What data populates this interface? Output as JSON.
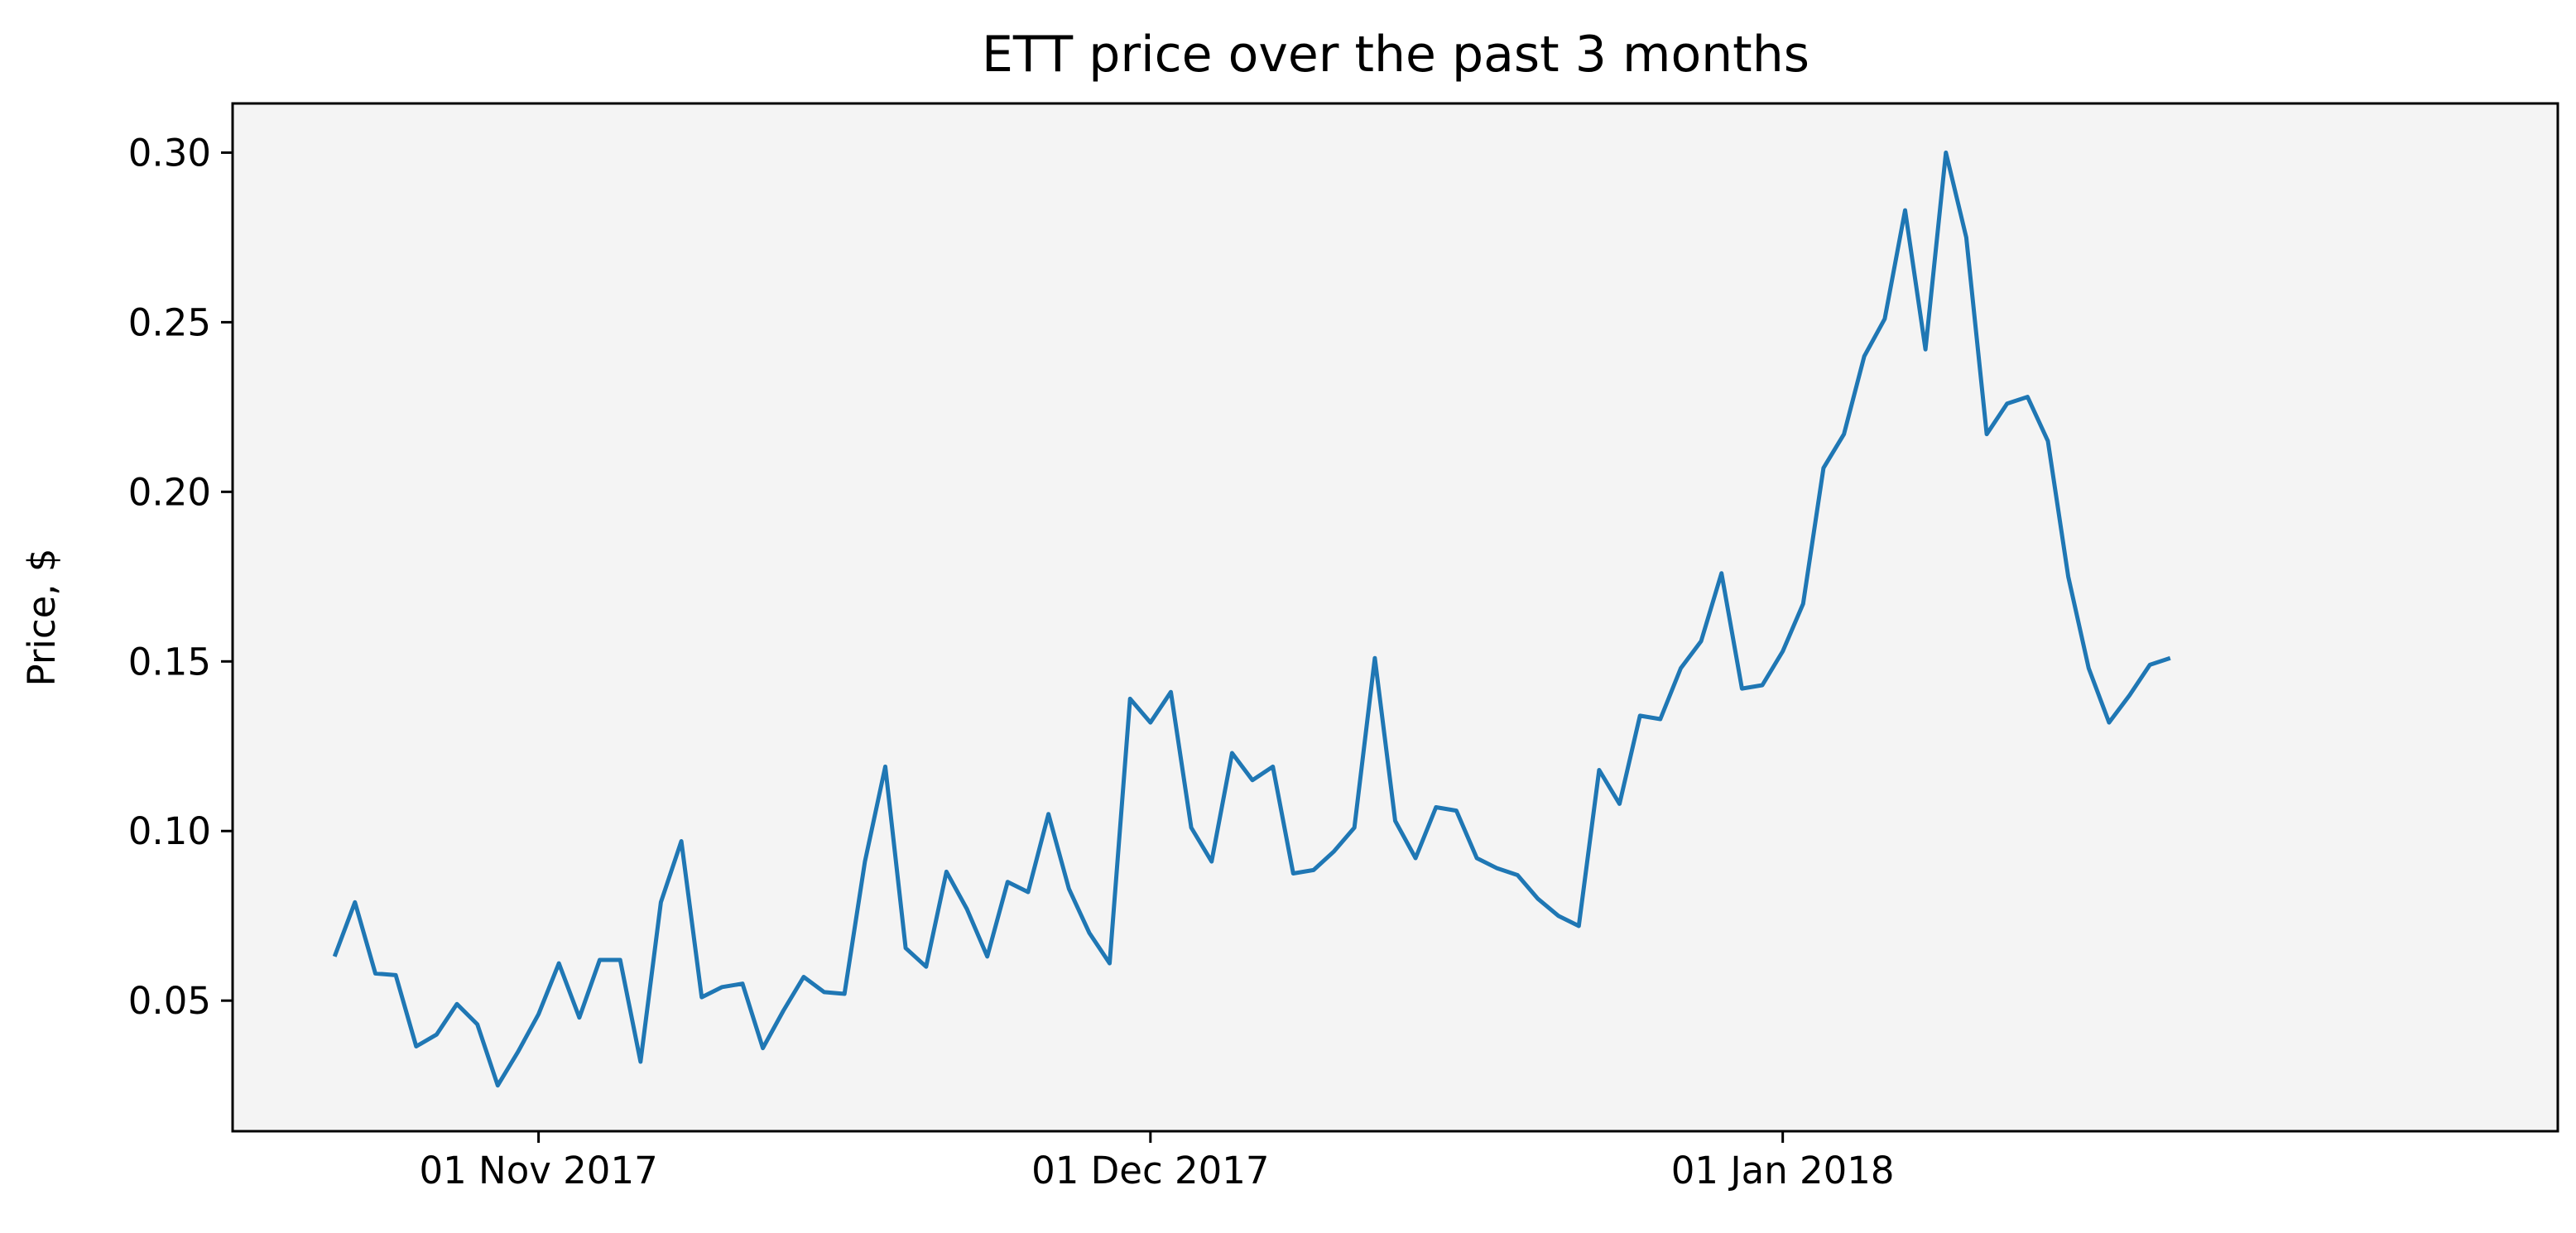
{
  "chart_data": {
    "type": "line",
    "title": "ETT price over the past 3 months",
    "xlabel": "",
    "ylabel": "Price, $",
    "x_start": "2017-10-22",
    "x_step_days": 1,
    "x_ticks": [
      {
        "date": "2017-11-01",
        "label": "01 Nov 2017"
      },
      {
        "date": "2017-12-01",
        "label": "01 Dec 2017"
      },
      {
        "date": "2018-01-01",
        "label": "01 Jan 2018"
      }
    ],
    "xlim": [
      "2017-10-17",
      "2018-02-08"
    ],
    "ylim": [
      0.0115,
      0.3145
    ],
    "y_ticks": [
      0.05,
      0.1,
      0.15,
      0.2,
      0.25,
      0.3
    ],
    "y_tick_labels": [
      "0.05",
      "0.10",
      "0.15",
      "0.20",
      "0.25",
      "0.30"
    ],
    "grid": false,
    "background_color": "#f4f4f4",
    "series": [
      {
        "name": "",
        "color": "#1f77b4",
        "values": [
          0.063,
          0.079,
          0.058,
          0.0575,
          0.0365,
          0.04,
          0.049,
          0.043,
          0.025,
          0.035,
          0.046,
          0.061,
          0.045,
          0.062,
          0.062,
          0.032,
          0.079,
          0.097,
          0.051,
          0.054,
          0.055,
          0.036,
          0.047,
          0.057,
          0.0525,
          0.052,
          0.091,
          0.119,
          0.0655,
          0.06,
          0.088,
          0.077,
          0.063,
          0.085,
          0.082,
          0.105,
          0.083,
          0.07,
          0.061,
          0.139,
          0.132,
          0.141,
          0.101,
          0.091,
          0.123,
          0.115,
          0.119,
          0.0875,
          0.0885,
          0.094,
          0.101,
          0.151,
          0.103,
          0.092,
          0.107,
          0.106,
          0.092,
          0.089,
          0.087,
          0.08,
          0.075,
          0.072,
          0.118,
          0.108,
          0.134,
          0.133,
          0.148,
          0.156,
          0.176,
          0.142,
          0.143,
          0.153,
          0.167,
          0.207,
          0.217,
          0.24,
          0.251,
          0.283,
          0.242,
          0.3,
          0.275,
          0.217,
          0.226,
          0.228,
          0.215,
          0.175,
          0.148,
          0.132,
          0.14,
          0.149,
          0.151
        ]
      }
    ]
  }
}
